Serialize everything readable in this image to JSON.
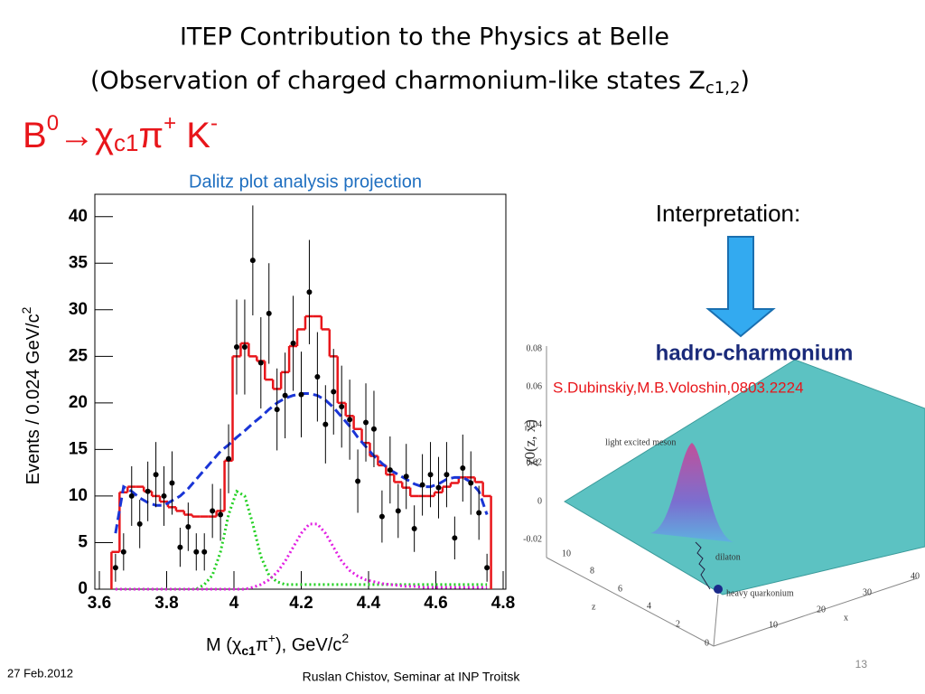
{
  "header": {
    "title": "ITEP Contribution to the Physics at Belle",
    "subtitle_parts": [
      "(Observation of charged charmonium-like states Z",
      "c1,2",
      ")"
    ],
    "decay_parts": [
      "B",
      "0",
      "→χ",
      "c1",
      "π",
      "+",
      " K",
      "-"
    ]
  },
  "chart_data": {
    "type": "histogram-fit",
    "title": "Dalitz plot analysis projection",
    "x_label_parts": [
      "M (χ",
      "c1",
      "π",
      "+",
      "), GeV/c",
      "2"
    ],
    "y_label_parts": [
      "Events / 0.024 GeV/c",
      "2"
    ],
    "xlim": [
      3.6,
      4.8
    ],
    "ylim": [
      0,
      42.4
    ],
    "xticks": [
      3.6,
      3.8,
      4,
      4.2,
      4.4,
      4.6,
      4.8
    ],
    "yticks": [
      0,
      5,
      10,
      15,
      20,
      25,
      30,
      35,
      40
    ],
    "x": [
      3.648,
      3.672,
      3.696,
      3.72,
      3.744,
      3.768,
      3.792,
      3.816,
      3.84,
      3.864,
      3.888,
      3.912,
      3.936,
      3.96,
      3.984,
      4.008,
      4.032,
      4.056,
      4.08,
      4.104,
      4.128,
      4.152,
      4.176,
      4.2,
      4.224,
      4.248,
      4.272,
      4.296,
      4.32,
      4.344,
      4.368,
      4.392,
      4.416,
      4.44,
      4.464,
      4.488,
      4.512,
      4.536,
      4.56,
      4.584,
      4.608,
      4.632,
      4.656,
      4.68,
      4.704,
      4.728,
      4.752
    ],
    "bin_width": 0.024,
    "points": {
      "color": "#000000",
      "values": [
        2.3,
        4,
        10,
        7,
        10.5,
        12.3,
        10,
        11.4,
        4.5,
        6.7,
        4,
        4,
        8.4,
        8,
        14,
        26,
        26,
        35.3,
        24.3,
        29.6,
        19.3,
        20.8,
        26.4,
        20.9,
        31.9,
        22.8,
        17.7,
        21.2,
        19.6,
        18.2,
        11.6,
        17.9,
        17.2,
        7.8,
        12.8,
        8.4,
        12.1,
        6.5,
        11.2,
        12.3,
        10.9,
        12.3,
        5.5,
        13,
        11.4,
        8.2,
        2.3
      ],
      "errors": [
        1.5,
        2,
        3.2,
        2.6,
        3.2,
        3.5,
        3.2,
        3.4,
        2.1,
        2.6,
        2,
        2,
        2.9,
        2.8,
        3.7,
        5.1,
        5.1,
        5.9,
        4.9,
        5.4,
        4.4,
        4.6,
        5.1,
        4.6,
        5.6,
        4.8,
        4.2,
        4.6,
        4.4,
        4.3,
        3.4,
        4.2,
        4.1,
        2.8,
        3.6,
        2.9,
        3.5,
        2.5,
        3.3,
        3.5,
        3.3,
        3.5,
        2.3,
        3.6,
        3.4,
        2.9,
        1.5
      ]
    },
    "fits": [
      {
        "style": "step",
        "color": "#e8161b",
        "values": [
          4,
          10.4,
          11,
          11,
          10.5,
          10,
          9.4,
          8.8,
          8.4,
          8,
          7.8,
          7.8,
          7.8,
          8.4,
          13.8,
          25,
          26.4,
          25,
          24.5,
          22.5,
          21.5,
          23.3,
          26.1,
          27.9,
          29.3,
          29.3,
          27.9,
          25,
          20,
          18.6,
          17.2,
          15.7,
          14.3,
          13.3,
          12.3,
          11.5,
          10.9,
          10,
          10,
          10,
          10.4,
          11,
          11.4,
          12,
          12,
          11.5,
          10
        ]
      },
      {
        "style": "dashed",
        "color": "#1a35d6",
        "values": [
          6,
          11,
          10.5,
          9.8,
          9.3,
          9,
          9,
          9.5,
          10,
          10.8,
          11.8,
          12.8,
          13.8,
          14.8,
          15.5,
          16.3,
          17,
          17.8,
          18.5,
          19.3,
          20,
          20.5,
          20.8,
          21,
          21,
          20.8,
          20.3,
          19.5,
          18.5,
          17.5,
          16.3,
          15.3,
          14.3,
          13.5,
          12.8,
          12.3,
          11.8,
          11.3,
          11,
          11,
          11.3,
          11.8,
          12,
          12,
          11.5,
          10.5,
          8
        ]
      },
      {
        "style": "dotted",
        "color": "#22d022",
        "values": [
          0,
          0,
          0,
          0,
          0,
          0,
          0,
          0,
          0,
          0,
          0,
          0.5,
          1.5,
          4,
          8,
          10.5,
          10,
          7,
          3.5,
          1.5,
          0.8,
          0.5,
          0.5,
          0.5,
          0.5,
          0.5,
          0.5,
          0.5,
          0.5,
          0.5,
          0.5,
          0.5,
          0.5,
          0.5,
          0.5,
          0.5,
          0.5,
          0.5,
          0.5,
          0.5,
          0.5,
          0.5,
          0.5,
          0.5,
          0.5,
          0.5,
          0.5
        ]
      },
      {
        "style": "dotted",
        "color": "#e21fe2",
        "values": [
          0,
          0,
          0,
          0,
          0,
          0,
          0,
          0,
          0,
          0,
          0,
          0,
          0,
          0,
          0,
          0,
          0,
          0.2,
          0.5,
          1,
          1.8,
          3,
          4.5,
          6,
          7,
          7,
          6,
          4.5,
          3,
          2,
          1.4,
          1,
          0.8,
          0.6,
          0.5,
          0.4,
          0.3,
          0.3,
          0.2,
          0.2,
          0.2,
          0.2,
          0.2,
          0.2,
          0.2,
          0.2,
          0.2
        ]
      }
    ]
  },
  "interpretation": {
    "label": "Interpretation:",
    "name": "hadro-charmonium",
    "reference": "S.Dubinskiy,M.B.Voloshin,0803.2224"
  },
  "figure": {
    "y_label": "χ0(z, x̄)",
    "y_ticks": [
      "0.08",
      "0.06",
      "0.04",
      "0.02",
      "0",
      "-0.02"
    ],
    "z_ticks": [
      "10",
      "8",
      "6",
      "4",
      "2",
      "0"
    ],
    "x_ticks": [
      "40",
      "30",
      "20",
      "10"
    ],
    "z_label": "z",
    "x_label": "x",
    "annotations": [
      "light excited meson",
      "dilaton",
      "heavy quarkonium"
    ]
  },
  "footer": {
    "date": "27 Feb.2012",
    "author": "Ruslan Chistov, Seminar at INP Troitsk",
    "page": "13"
  }
}
